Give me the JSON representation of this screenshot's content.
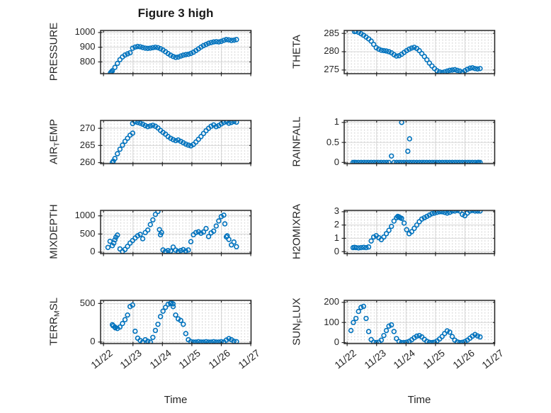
{
  "title": "Figure 3 high",
  "style": {
    "marker_color": "#0072BD",
    "axes_color": "#262626",
    "grid_color": "#d7d7d7",
    "minor_dot_color": "#bdbdbd",
    "background": "#ffffff",
    "text_color": "#262626"
  },
  "chart_data": {
    "type": "scatter",
    "layout": "4x2-subplot-grid",
    "marker": "open-circle",
    "x_label": "Time",
    "x_ticks": [
      22,
      23,
      24,
      25,
      26,
      27
    ],
    "x_tick_labels": [
      "11/22",
      "11/23",
      "11/24",
      "11/25",
      "11/26",
      "11/27"
    ],
    "x_range_days": [
      21.9,
      27.01
    ],
    "x_unit": "November date (month/day)",
    "grid": "major-solid-minor-dotted",
    "x": [
      22.3,
      22.386,
      22.472,
      22.558,
      22.644,
      22.73,
      22.816,
      22.902,
      22.988,
      23.074,
      23.16,
      23.246,
      23.332,
      23.418,
      23.504,
      23.59,
      23.676,
      23.762,
      23.848,
      23.934,
      24.02,
      24.106,
      24.192,
      24.278,
      24.364,
      24.45,
      24.536,
      24.622,
      24.708,
      24.794,
      24.88,
      24.966,
      25.052,
      25.138,
      25.224,
      25.31,
      25.396,
      25.482,
      25.568,
      25.654,
      25.74,
      25.826,
      25.912,
      25.998,
      26.084,
      26.17,
      26.256,
      26.342,
      26.428,
      26.514
    ],
    "subplots": [
      {
        "name": "pressure",
        "ylabel": "PRESSURE",
        "ylabel_parts": [
          [
            "PRESSURE",
            false
          ]
        ],
        "yticks": [
          800,
          900,
          1000
        ],
        "ytick_labels": [
          "800",
          "900",
          "1000"
        ],
        "ylim": [
          720,
          1014
        ],
        "values": [
          740,
          763,
          790,
          815,
          834,
          847,
          855,
          862,
          893,
          901,
          905,
          903,
          898,
          894,
          892,
          894,
          897,
          900,
          897,
          890,
          881,
          869,
          857,
          846,
          837,
          831,
          833,
          840,
          846,
          850,
          852,
          858,
          866,
          877,
          889,
          901,
          911,
          919,
          927,
          932,
          936,
          938,
          936,
          940,
          947,
          952,
          950,
          946,
          948,
          952
        ],
        "extra": [
          [
            22.24,
            726
          ],
          [
            22.27,
            733
          ]
        ]
      },
      {
        "name": "theta",
        "ylabel": "THETA",
        "ylabel_parts": [
          [
            "THETA",
            false
          ]
        ],
        "yticks": [
          275,
          280,
          285
        ],
        "ytick_labels": [
          "275",
          "280",
          "285"
        ],
        "ylim": [
          274.0,
          285.8
        ],
        "values": [
          285.6,
          285.3,
          284.9,
          284.5,
          284.0,
          283.5,
          282.9,
          282.0,
          281.1,
          280.7,
          280.4,
          280.3,
          280.2,
          280.0,
          279.7,
          279.2,
          278.8,
          278.9,
          279.3,
          279.8,
          280.3,
          280.7,
          281.0,
          281.2,
          280.9,
          280.3,
          279.5,
          278.7,
          277.8,
          276.9,
          276.1,
          275.4,
          274.8,
          274.5,
          274.3,
          274.5,
          274.7,
          274.9,
          275.0,
          275.1,
          274.9,
          274.7,
          274.4,
          274.8,
          275.2,
          275.5,
          275.6,
          275.4,
          275.3,
          275.4
        ],
        "extra": [
          [
            22.25,
            285.5
          ]
        ]
      },
      {
        "name": "air-temp",
        "ylabel": "AIR_TEMP",
        "ylabel_parts": [
          [
            "AIR",
            false
          ],
          [
            "T",
            true
          ],
          [
            "EMP",
            false
          ]
        ],
        "yticks": [
          260,
          265,
          270
        ],
        "ytick_labels": [
          "260",
          "265",
          "270"
        ],
        "ylim": [
          259.7,
          272.3
        ],
        "values": [
          260.0,
          261.2,
          262.6,
          263.9,
          265.1,
          266.2,
          267.1,
          268.0,
          271.4,
          271.9,
          271.7,
          271.5,
          271.2,
          270.8,
          270.5,
          270.7,
          270.9,
          270.6,
          270.1,
          269.4,
          268.8,
          268.3,
          267.6,
          267.1,
          266.7,
          266.4,
          266.6,
          266.2,
          265.8,
          265.4,
          265.1,
          264.9,
          265.3,
          266.0,
          266.8,
          267.6,
          268.5,
          269.3,
          270.0,
          270.6,
          271.0,
          270.5,
          270.8,
          271.3,
          271.7,
          271.9,
          271.5,
          271.7,
          272.0,
          271.8
        ],
        "extra": [
          [
            22.99,
            268.6
          ],
          [
            22.33,
            260.4
          ]
        ]
      },
      {
        "name": "rainfall",
        "ylabel": "RAINFALL",
        "ylabel_parts": [
          [
            "RAINFALL",
            false
          ]
        ],
        "yticks": [
          0,
          0.5,
          1
        ],
        "ytick_labels": [
          "0",
          "0.5",
          "1"
        ],
        "ylim": [
          -0.03,
          1.05
        ],
        "values": [
          0,
          0,
          0,
          0,
          0,
          0,
          0,
          0,
          0,
          0,
          0,
          0,
          0,
          0,
          0.16,
          0,
          0,
          0,
          0,
          0,
          0,
          0,
          0,
          0,
          0,
          0,
          0,
          0,
          0,
          0,
          0,
          0,
          0,
          0,
          0,
          0,
          0,
          0,
          0,
          0,
          0,
          0,
          0,
          0,
          0,
          0,
          0,
          0,
          0,
          0
        ],
        "extra": [
          [
            23.85,
            1.0
          ],
          [
            24.06,
            0.28
          ],
          [
            24.12,
            0.59
          ],
          [
            22.2,
            0
          ],
          [
            22.25,
            0
          ],
          [
            26.46,
            0
          ]
        ]
      },
      {
        "name": "mixdepth",
        "ylabel": "MIXDEPTH",
        "ylabel_parts": [
          [
            "MIXDEPTH",
            false
          ]
        ],
        "yticks": [
          0,
          500,
          1000
        ],
        "ytick_labels": [
          "0",
          "500",
          "1000"
        ],
        "ylim": [
          -40,
          1150
        ],
        "values": [
          180,
          340,
          470,
          90,
          15,
          75,
          160,
          250,
          320,
          390,
          450,
          490,
          370,
          540,
          610,
          760,
          890,
          1040,
          1120,
          480,
          60,
          20,
          45,
          30,
          140,
          55,
          20,
          45,
          70,
          30,
          60,
          290,
          480,
          540,
          560,
          520,
          555,
          650,
          430,
          530,
          580,
          720,
          860,
          980,
          1020,
          420,
          350,
          200,
          280,
          150
        ],
        "extra": [
          [
            22.15,
            130
          ],
          [
            22.22,
            300
          ],
          [
            22.35,
            250
          ],
          [
            22.42,
            410
          ],
          [
            23.9,
            620
          ],
          [
            23.97,
            540
          ],
          [
            26.12,
            780
          ],
          [
            26.2,
            450
          ]
        ]
      },
      {
        "name": "h2omixra",
        "ylabel": "H2OMIXRA",
        "ylabel_parts": [
          [
            "H2OMIXRA",
            false
          ]
        ],
        "yticks": [
          0,
          1,
          2,
          3
        ],
        "ytick_labels": [
          "0",
          "1",
          "2",
          "3"
        ],
        "ylim": [
          -0.15,
          3.1
        ],
        "values": [
          0.3,
          0.28,
          0.3,
          0.32,
          0.3,
          0.35,
          0.8,
          1.1,
          1.2,
          1.05,
          0.9,
          1.1,
          1.35,
          1.6,
          1.9,
          2.3,
          2.55,
          2.6,
          2.5,
          2.15,
          1.65,
          1.35,
          1.5,
          1.75,
          2.0,
          2.25,
          2.45,
          2.55,
          2.65,
          2.75,
          2.85,
          2.9,
          2.95,
          3.0,
          3.0,
          2.95,
          2.9,
          2.95,
          3.05,
          3.05,
          3.1,
          3.05,
          2.8,
          2.7,
          2.9,
          3.05,
          3.1,
          3.05,
          3.05,
          3.05
        ],
        "extra": [
          [
            22.2,
            0.3
          ],
          [
            22.25,
            0.32
          ],
          [
            23.72,
            2.65
          ],
          [
            23.8,
            2.55
          ]
        ]
      },
      {
        "name": "terr-msl",
        "ylabel": "TERR_MSL",
        "ylabel_parts": [
          [
            "TERR",
            false
          ],
          [
            "M",
            true
          ],
          [
            "SL",
            false
          ]
        ],
        "yticks": [
          0,
          500
        ],
        "ytick_labels": [
          "0",
          "500"
        ],
        "ylim": [
          -20,
          540
        ],
        "values": [
          225,
          195,
          175,
          195,
          240,
          290,
          350,
          460,
          480,
          140,
          50,
          20,
          0,
          30,
          10,
          0,
          60,
          150,
          230,
          330,
          400,
          450,
          490,
          500,
          460,
          350,
          300,
          280,
          230,
          110,
          30,
          5,
          0,
          0,
          5,
          0,
          0,
          5,
          0,
          0,
          5,
          0,
          0,
          5,
          0,
          25,
          45,
          30,
          10,
          5
        ],
        "extra": [
          [
            22.33,
            210
          ],
          [
            22.4,
            185
          ],
          [
            24.3,
            510
          ],
          [
            24.36,
            495
          ]
        ]
      },
      {
        "name": "sun-flux",
        "ylabel": "SUN_FLUX",
        "ylabel_parts": [
          [
            "SUN",
            false
          ],
          [
            "F",
            true
          ],
          [
            "LUX",
            false
          ]
        ],
        "yticks": [
          0,
          100,
          200
        ],
        "ytick_labels": [
          "0",
          "100",
          "200"
        ],
        "ylim": [
          -5,
          210
        ],
        "values": [
          120,
          155,
          175,
          180,
          120,
          55,
          15,
          2,
          0,
          2,
          12,
          35,
          60,
          82,
          88,
          55,
          20,
          5,
          0,
          0,
          2,
          6,
          14,
          24,
          32,
          35,
          28,
          16,
          6,
          1,
          0,
          2,
          8,
          18,
          30,
          45,
          58,
          52,
          30,
          12,
          3,
          0,
          1,
          5,
          12,
          22,
          32,
          40,
          33,
          28
        ],
        "extra": [
          [
            22.13,
            60
          ],
          [
            22.21,
            100
          ]
        ]
      }
    ]
  }
}
